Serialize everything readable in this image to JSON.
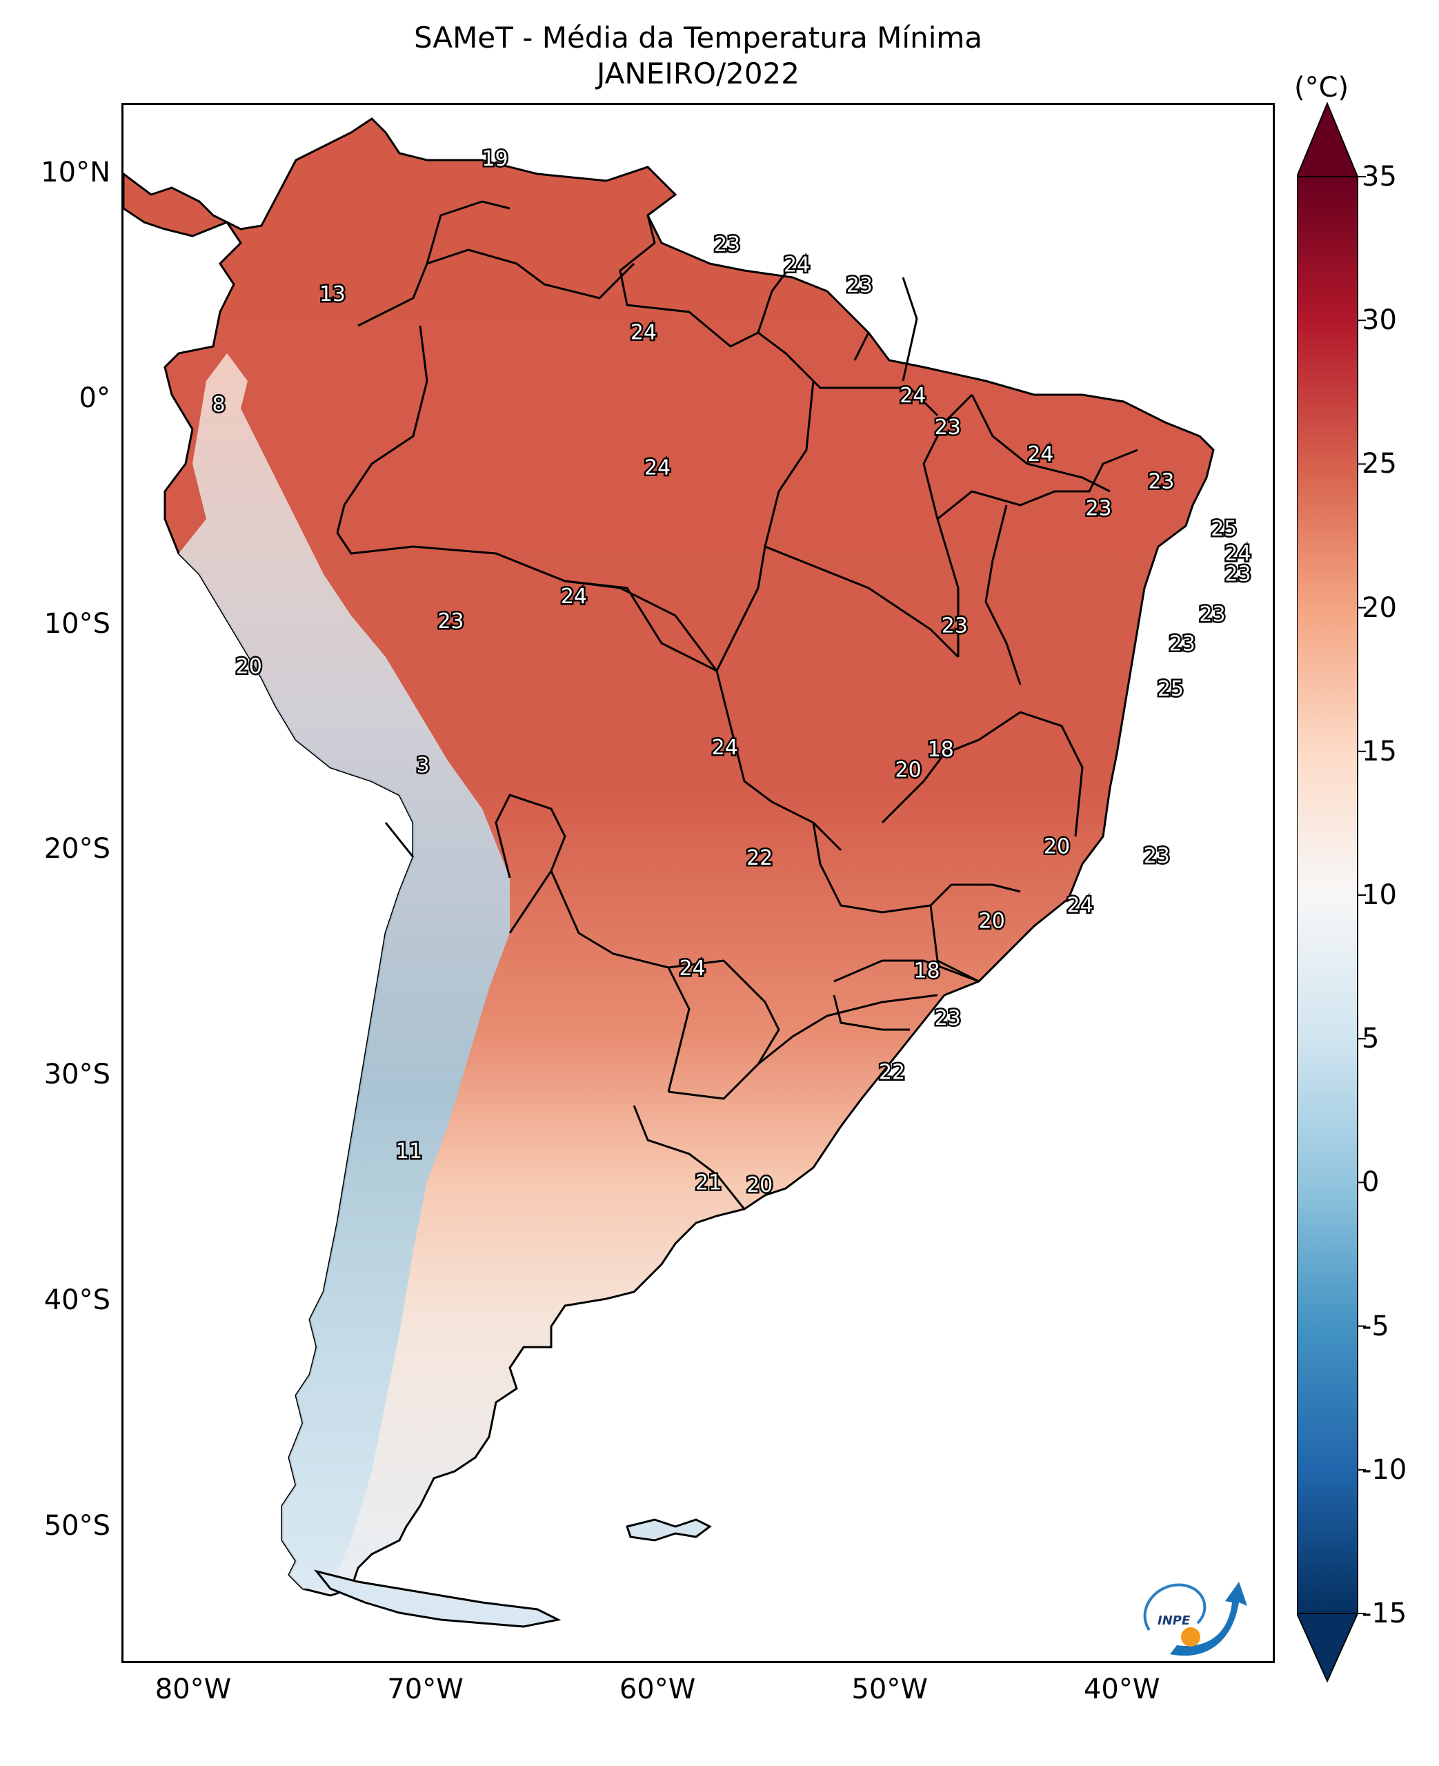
{
  "title": {
    "line1": "SAMeT - Média da Temperatura Mínima",
    "line2": "JANEIRO/2022"
  },
  "map": {
    "lon_range": [
      -83,
      -33.5
    ],
    "lat_range": [
      -56,
      13
    ],
    "y_ticks": [
      {
        "lat": 10,
        "label": "10°N"
      },
      {
        "lat": 0,
        "label": "0°"
      },
      {
        "lat": -10,
        "label": "10°S"
      },
      {
        "lat": -20,
        "label": "20°S"
      },
      {
        "lat": -30,
        "label": "30°S"
      },
      {
        "lat": -40,
        "label": "40°S"
      },
      {
        "lat": -50,
        "label": "50°S"
      }
    ],
    "x_ticks": [
      {
        "lon": -80,
        "label": "80°W"
      },
      {
        "lon": -70,
        "label": "70°W"
      },
      {
        "lon": -60,
        "label": "60°W"
      },
      {
        "lon": -50,
        "label": "50°W"
      },
      {
        "lon": -40,
        "label": "40°W"
      }
    ],
    "value_labels": [
      {
        "lon": -67,
        "lat": 10.6,
        "text": "19"
      },
      {
        "lon": -74,
        "lat": 4.6,
        "text": "13"
      },
      {
        "lon": -57,
        "lat": 6.8,
        "text": "23"
      },
      {
        "lon": -54,
        "lat": 5.9,
        "text": "24"
      },
      {
        "lon": -51.3,
        "lat": 5.0,
        "text": "23"
      },
      {
        "lon": -60.6,
        "lat": 2.9,
        "text": "24"
      },
      {
        "lon": -78.9,
        "lat": -0.3,
        "text": "8"
      },
      {
        "lon": -49,
        "lat": 0.1,
        "text": "24"
      },
      {
        "lon": -47.5,
        "lat": -1.3,
        "text": "23"
      },
      {
        "lon": -60,
        "lat": -3.1,
        "text": "24"
      },
      {
        "lon": -43.5,
        "lat": -2.5,
        "text": "24"
      },
      {
        "lon": -38.3,
        "lat": -3.7,
        "text": "23"
      },
      {
        "lon": -41,
        "lat": -4.9,
        "text": "23"
      },
      {
        "lon": -35.6,
        "lat": -5.8,
        "text": "25"
      },
      {
        "lon": -35.0,
        "lat": -6.9,
        "text": "24"
      },
      {
        "lon": -35.0,
        "lat": -7.8,
        "text": "23"
      },
      {
        "lon": -63.6,
        "lat": -8.8,
        "text": "24"
      },
      {
        "lon": -68.9,
        "lat": -9.9,
        "text": "23"
      },
      {
        "lon": -36.1,
        "lat": -9.6,
        "text": "23"
      },
      {
        "lon": -47.2,
        "lat": -10.1,
        "text": "23"
      },
      {
        "lon": -37.4,
        "lat": -10.9,
        "text": "23"
      },
      {
        "lon": -77.6,
        "lat": -11.9,
        "text": "20"
      },
      {
        "lon": -37.9,
        "lat": -12.9,
        "text": "25"
      },
      {
        "lon": -57.1,
        "lat": -15.5,
        "text": "24"
      },
      {
        "lon": -47.8,
        "lat": -15.6,
        "text": "18"
      },
      {
        "lon": -49.2,
        "lat": -16.5,
        "text": "20"
      },
      {
        "lon": -70.1,
        "lat": -16.3,
        "text": "3"
      },
      {
        "lon": -42.8,
        "lat": -19.9,
        "text": "20"
      },
      {
        "lon": -55.6,
        "lat": -20.4,
        "text": "22"
      },
      {
        "lon": -38.5,
        "lat": -20.3,
        "text": "23"
      },
      {
        "lon": -41.8,
        "lat": -22.5,
        "text": "24"
      },
      {
        "lon": -45.6,
        "lat": -23.2,
        "text": "20"
      },
      {
        "lon": -58.5,
        "lat": -25.3,
        "text": "24"
      },
      {
        "lon": -48.4,
        "lat": -25.4,
        "text": "18"
      },
      {
        "lon": -47.5,
        "lat": -27.5,
        "text": "23"
      },
      {
        "lon": -49.9,
        "lat": -29.9,
        "text": "22"
      },
      {
        "lon": -70.7,
        "lat": -33.4,
        "text": "11"
      },
      {
        "lon": -57.8,
        "lat": -34.8,
        "text": "21"
      },
      {
        "lon": -55.6,
        "lat": -34.9,
        "text": "20"
      }
    ]
  },
  "colorbar": {
    "unit": "(°C)",
    "min": -15,
    "max": 35,
    "ticks": [
      "35",
      "30",
      "25",
      "20",
      "15",
      "10",
      "5",
      "0",
      "-5",
      "-10",
      "-15"
    ],
    "tick_values": [
      35,
      30,
      25,
      20,
      15,
      10,
      5,
      0,
      -5,
      -10,
      -15
    ],
    "colors": [
      "#053061",
      "#2166ac",
      "#4393c3",
      "#92c5de",
      "#d1e5f0",
      "#f7f7f7",
      "#fddbc7",
      "#f4a582",
      "#d6604d",
      "#b2182b",
      "#67001f"
    ]
  },
  "colors": {
    "ocean": "#ffffff",
    "land_warm": "#d9604d",
    "border": "#000000"
  },
  "logo": {
    "text": "INPE",
    "icon": "inpe-logo"
  }
}
